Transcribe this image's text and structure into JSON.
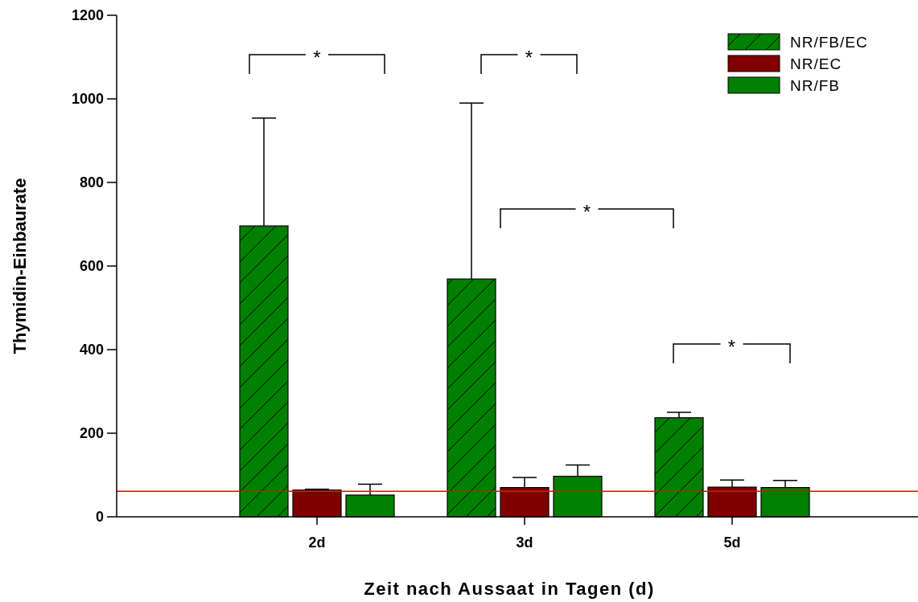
{
  "chart_data": {
    "type": "bar",
    "xlabel": "Zeit nach Aussaat in Tagen (d)",
    "ylabel": "Thymidin-Einbaurate",
    "categories": [
      "2d",
      "3d",
      "5d"
    ],
    "series": [
      {
        "name": "NR/FB/EC",
        "color": "#008000",
        "values": [
          696,
          569,
          237
        ],
        "errors": [
          [
            696,
            954
          ],
          [
            569,
            990
          ],
          [
            237,
            250
          ]
        ]
      },
      {
        "name": "NR/EC",
        "color": "#800000",
        "values": [
          64,
          70,
          71
        ],
        "errors": [
          [
            64,
            66
          ],
          [
            70,
            94
          ],
          [
            71,
            88
          ]
        ]
      },
      {
        "name": "NR/FB",
        "color": "#008000",
        "values": [
          52,
          97,
          70
        ],
        "errors": [
          [
            52,
            78
          ],
          [
            97,
            124
          ],
          [
            70,
            87
          ]
        ]
      }
    ],
    "ylim": [
      0,
      1200
    ],
    "yticks": [
      0,
      200,
      400,
      600,
      800,
      1000,
      1200
    ],
    "ref_lines": [
      {
        "axis": "y",
        "value": 61,
        "color": "#ff0000"
      }
    ],
    "annotations": [
      "*",
      "*",
      "*",
      "*"
    ],
    "legend": "top right",
    "grid": false
  }
}
